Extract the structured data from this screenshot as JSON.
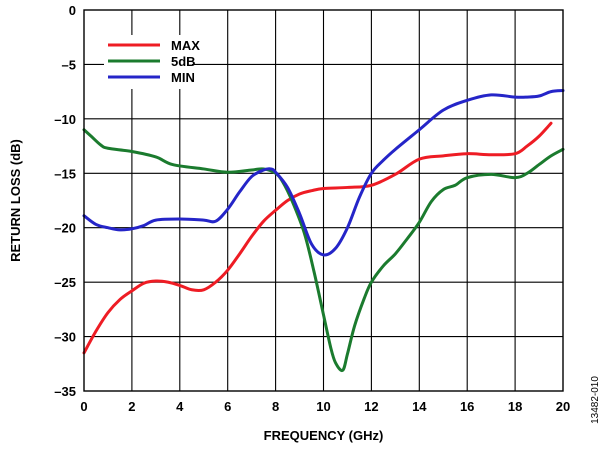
{
  "figure_code": "13482-010",
  "chart_data": {
    "type": "line",
    "title": "",
    "xlabel": "FREQUENCY (GHz)",
    "ylabel": "RETURN LOSS (dB)",
    "xlim": [
      0,
      20
    ],
    "ylim": [
      -35,
      0
    ],
    "xticks": [
      0,
      2,
      4,
      6,
      8,
      10,
      12,
      14,
      16,
      18,
      20
    ],
    "yticks": [
      0,
      -5,
      -10,
      -15,
      -20,
      -25,
      -30,
      -35
    ],
    "xtick_labels": [
      "0",
      "2",
      "4",
      "6",
      "8",
      "10",
      "12",
      "14",
      "16",
      "18",
      "20"
    ],
    "ytick_labels": [
      "0",
      "–5",
      "–10",
      "–15",
      "–20",
      "–25",
      "–30",
      "–35"
    ],
    "grid": true,
    "legend": {
      "placement": "top-left"
    },
    "series": [
      {
        "name": "MAX",
        "color": "#ee1c24",
        "points": [
          [
            0,
            -31.5
          ],
          [
            0.5,
            -29.5
          ],
          [
            1,
            -27.8
          ],
          [
            1.5,
            -26.6
          ],
          [
            2,
            -25.8
          ],
          [
            2.5,
            -25.1
          ],
          [
            3,
            -24.9
          ],
          [
            3.5,
            -25.0
          ],
          [
            4,
            -25.3
          ],
          [
            4.5,
            -25.7
          ],
          [
            5,
            -25.7
          ],
          [
            5.5,
            -25.0
          ],
          [
            6,
            -23.9
          ],
          [
            6.5,
            -22.4
          ],
          [
            7,
            -20.8
          ],
          [
            7.5,
            -19.4
          ],
          [
            8,
            -18.4
          ],
          [
            8.5,
            -17.5
          ],
          [
            9,
            -16.9
          ],
          [
            9.5,
            -16.6
          ],
          [
            10,
            -16.4
          ],
          [
            11,
            -16.3
          ],
          [
            12,
            -16.1
          ],
          [
            13,
            -15.1
          ],
          [
            14,
            -13.7
          ],
          [
            15,
            -13.4
          ],
          [
            16,
            -13.2
          ],
          [
            17,
            -13.3
          ],
          [
            18,
            -13.2
          ],
          [
            18.5,
            -12.5
          ],
          [
            19,
            -11.6
          ],
          [
            19.5,
            -10.4
          ]
        ]
      },
      {
        "name": "5dB",
        "color": "#1b7b2e",
        "points": [
          [
            0,
            -11.0
          ],
          [
            0.3,
            -11.6
          ],
          [
            0.7,
            -12.4
          ],
          [
            1,
            -12.7
          ],
          [
            2,
            -13.0
          ],
          [
            3,
            -13.5
          ],
          [
            3.7,
            -14.2
          ],
          [
            5,
            -14.6
          ],
          [
            6,
            -14.9
          ],
          [
            7,
            -14.7
          ],
          [
            7.5,
            -14.6
          ],
          [
            8,
            -15.0
          ],
          [
            8.3,
            -15.8
          ],
          [
            8.7,
            -17.6
          ],
          [
            9.2,
            -20.5
          ],
          [
            9.6,
            -24.0
          ],
          [
            10,
            -28.0
          ],
          [
            10.3,
            -31.0
          ],
          [
            10.5,
            -32.4
          ],
          [
            10.8,
            -33.1
          ],
          [
            11,
            -31.6
          ],
          [
            11.3,
            -29.0
          ],
          [
            11.7,
            -26.5
          ],
          [
            12,
            -25.0
          ],
          [
            12.5,
            -23.5
          ],
          [
            13,
            -22.4
          ],
          [
            13.5,
            -21.0
          ],
          [
            14,
            -19.5
          ],
          [
            14.5,
            -17.6
          ],
          [
            15,
            -16.5
          ],
          [
            15.5,
            -16.1
          ],
          [
            16,
            -15.4
          ],
          [
            17,
            -15.1
          ],
          [
            18,
            -15.4
          ],
          [
            18.5,
            -15.0
          ],
          [
            19,
            -14.2
          ],
          [
            19.5,
            -13.4
          ],
          [
            20,
            -12.8
          ]
        ]
      },
      {
        "name": "MIN",
        "color": "#2525c8",
        "points": [
          [
            0,
            -18.9
          ],
          [
            0.5,
            -19.7
          ],
          [
            1,
            -20.0
          ],
          [
            1.5,
            -20.2
          ],
          [
            2,
            -20.1
          ],
          [
            2.5,
            -19.8
          ],
          [
            3,
            -19.3
          ],
          [
            4,
            -19.2
          ],
          [
            5,
            -19.3
          ],
          [
            5.5,
            -19.4
          ],
          [
            6,
            -18.3
          ],
          [
            6.5,
            -16.7
          ],
          [
            7,
            -15.3
          ],
          [
            7.5,
            -14.7
          ],
          [
            7.8,
            -14.6
          ],
          [
            8,
            -14.9
          ],
          [
            8.5,
            -16.3
          ],
          [
            9,
            -18.7
          ],
          [
            9.5,
            -21.5
          ],
          [
            10,
            -22.5
          ],
          [
            10.5,
            -21.9
          ],
          [
            11,
            -20.0
          ],
          [
            11.5,
            -17.2
          ],
          [
            12,
            -15.0
          ],
          [
            12.5,
            -13.8
          ],
          [
            13,
            -12.8
          ],
          [
            14,
            -11.0
          ],
          [
            15,
            -9.2
          ],
          [
            16,
            -8.3
          ],
          [
            17,
            -7.8
          ],
          [
            18,
            -8.0
          ],
          [
            18.5,
            -8.0
          ],
          [
            19,
            -7.9
          ],
          [
            19.5,
            -7.5
          ],
          [
            20,
            -7.4
          ]
        ]
      }
    ]
  }
}
